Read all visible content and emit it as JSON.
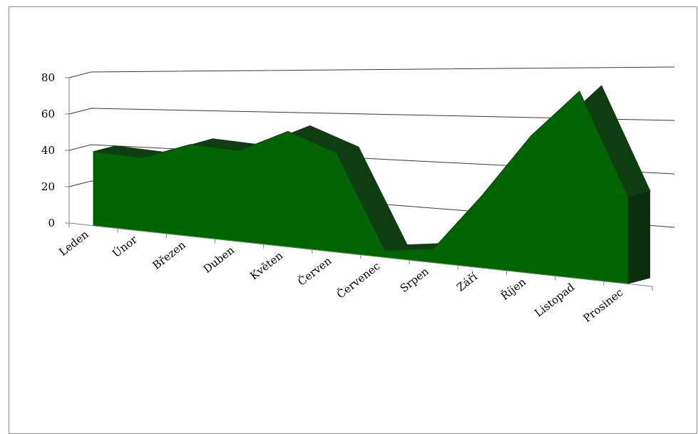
{
  "chart_data": {
    "type": "area",
    "title": "",
    "xlabel": "",
    "ylabel": "",
    "categories": [
      "Leden",
      "Únor",
      "Březen",
      "Duben",
      "Květen",
      "Červen",
      "Červenec",
      "Srpen",
      "Září",
      "Říjen",
      "Listopad",
      "Prosinec"
    ],
    "series": [
      {
        "values": [
          40,
          38,
          46,
          44,
          54,
          45,
          3,
          6,
          30,
          55,
          73,
          33
        ],
        "color": "#006400"
      }
    ],
    "ylim": [
      0,
      80
    ],
    "yticks": [
      0,
      20,
      40,
      60,
      80
    ],
    "grid": true,
    "legend": "none",
    "style": "3d-perspective"
  }
}
